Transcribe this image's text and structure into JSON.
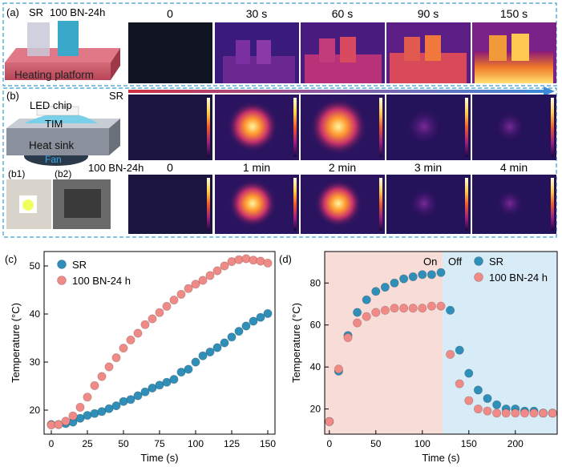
{
  "panel_a": {
    "label": "(a)",
    "sample_labels": [
      "SR",
      "100 BN-24h"
    ],
    "platform_label": "Heating platform",
    "time_labels": [
      "0",
      "30 s",
      "60 s",
      "90 s",
      "150 s"
    ]
  },
  "panel_b": {
    "label": "(b)",
    "row_labels": [
      "SR",
      "100 BN-24h"
    ],
    "time_labels": [
      "0",
      "1 min",
      "2 min",
      "3 min",
      "4 min"
    ],
    "stack_labels": {
      "chip": "LED chip",
      "tim": "TIM",
      "sink": "Heat sink",
      "fan": "Fan"
    },
    "photo_labels": [
      "(b1)",
      "(b2)"
    ]
  },
  "colors": {
    "sr": "#2f8fb8",
    "bn": "#f08a86",
    "on_region": "#f8dcd8",
    "off_region": "#d8ecf8",
    "frame": "#3a9bd0"
  },
  "chart_data": [
    {
      "panel": "(c)",
      "type": "scatter",
      "xlabel": "Time (s)",
      "ylabel": "Temperature (°C)",
      "xlim": [
        -5,
        155
      ],
      "ylim": [
        15,
        53
      ],
      "xticks": [
        0,
        25,
        50,
        75,
        100,
        125,
        150
      ],
      "yticks": [
        20,
        30,
        40,
        50
      ],
      "legend_position": "top-left",
      "series": [
        {
          "name": "SR",
          "x": [
            0,
            5,
            10,
            15,
            20,
            25,
            30,
            35,
            40,
            45,
            50,
            55,
            60,
            65,
            70,
            75,
            80,
            85,
            90,
            95,
            100,
            105,
            110,
            115,
            120,
            125,
            130,
            135,
            140,
            145,
            150
          ],
          "y": [
            17.0,
            17.0,
            17.2,
            17.5,
            18.3,
            18.9,
            19.3,
            19.7,
            20.3,
            20.9,
            21.8,
            22.2,
            23.0,
            23.8,
            24.6,
            25.2,
            25.8,
            26.4,
            27.9,
            28.5,
            30.0,
            31.3,
            32.1,
            33.0,
            34.0,
            35.2,
            36.4,
            37.5,
            38.5,
            39.3,
            40.1
          ]
        },
        {
          "name": "100 BN-24 h",
          "x": [
            0,
            5,
            10,
            15,
            20,
            25,
            30,
            35,
            40,
            45,
            50,
            55,
            60,
            65,
            70,
            75,
            80,
            85,
            90,
            95,
            100,
            105,
            110,
            115,
            120,
            125,
            130,
            135,
            140,
            145,
            150
          ],
          "y": [
            16.9,
            17.0,
            17.7,
            18.8,
            20.6,
            22.7,
            25.1,
            27.0,
            29.0,
            30.9,
            32.9,
            34.6,
            36.0,
            37.8,
            39.0,
            40.3,
            41.6,
            42.9,
            44.1,
            45.3,
            46.2,
            47.0,
            48.0,
            49.0,
            50.0,
            50.9,
            51.3,
            51.5,
            51.2,
            51.0,
            50.6
          ]
        }
      ]
    },
    {
      "panel": "(d)",
      "type": "scatter",
      "xlabel": "Time (s)",
      "ylabel": "Temperature (°C)",
      "xlim": [
        -5,
        245
      ],
      "ylim": [
        8,
        95
      ],
      "xticks": [
        0,
        50,
        100,
        150,
        200
      ],
      "yticks": [
        20,
        40,
        60,
        80
      ],
      "on_label": "On",
      "off_label": "Off",
      "on_range": [
        -5,
        122
      ],
      "off_range": [
        122,
        245
      ],
      "legend_position": "top-right",
      "series": [
        {
          "name": "SR",
          "x": [
            0,
            10,
            20,
            30,
            40,
            50,
            60,
            70,
            80,
            90,
            100,
            110,
            120,
            130,
            140,
            150,
            160,
            170,
            180,
            190,
            200,
            210,
            220,
            230,
            240
          ],
          "y": [
            14,
            38,
            55,
            66,
            72,
            76,
            78,
            80,
            82,
            83,
            84,
            84,
            85,
            67,
            48,
            37,
            29,
            25,
            22,
            20,
            20,
            19,
            19,
            18,
            18
          ]
        },
        {
          "name": "100 BN-24 h",
          "x": [
            0,
            10,
            20,
            30,
            40,
            50,
            60,
            70,
            80,
            90,
            100,
            110,
            120,
            130,
            140,
            150,
            160,
            170,
            180,
            190,
            200,
            210,
            220,
            230,
            240
          ],
          "y": [
            14,
            39,
            54,
            61,
            64,
            66,
            67,
            68,
            68,
            68,
            68,
            69,
            69,
            46,
            32,
            24,
            20,
            19,
            18,
            18,
            18,
            18,
            18,
            18,
            18
          ]
        }
      ]
    }
  ]
}
